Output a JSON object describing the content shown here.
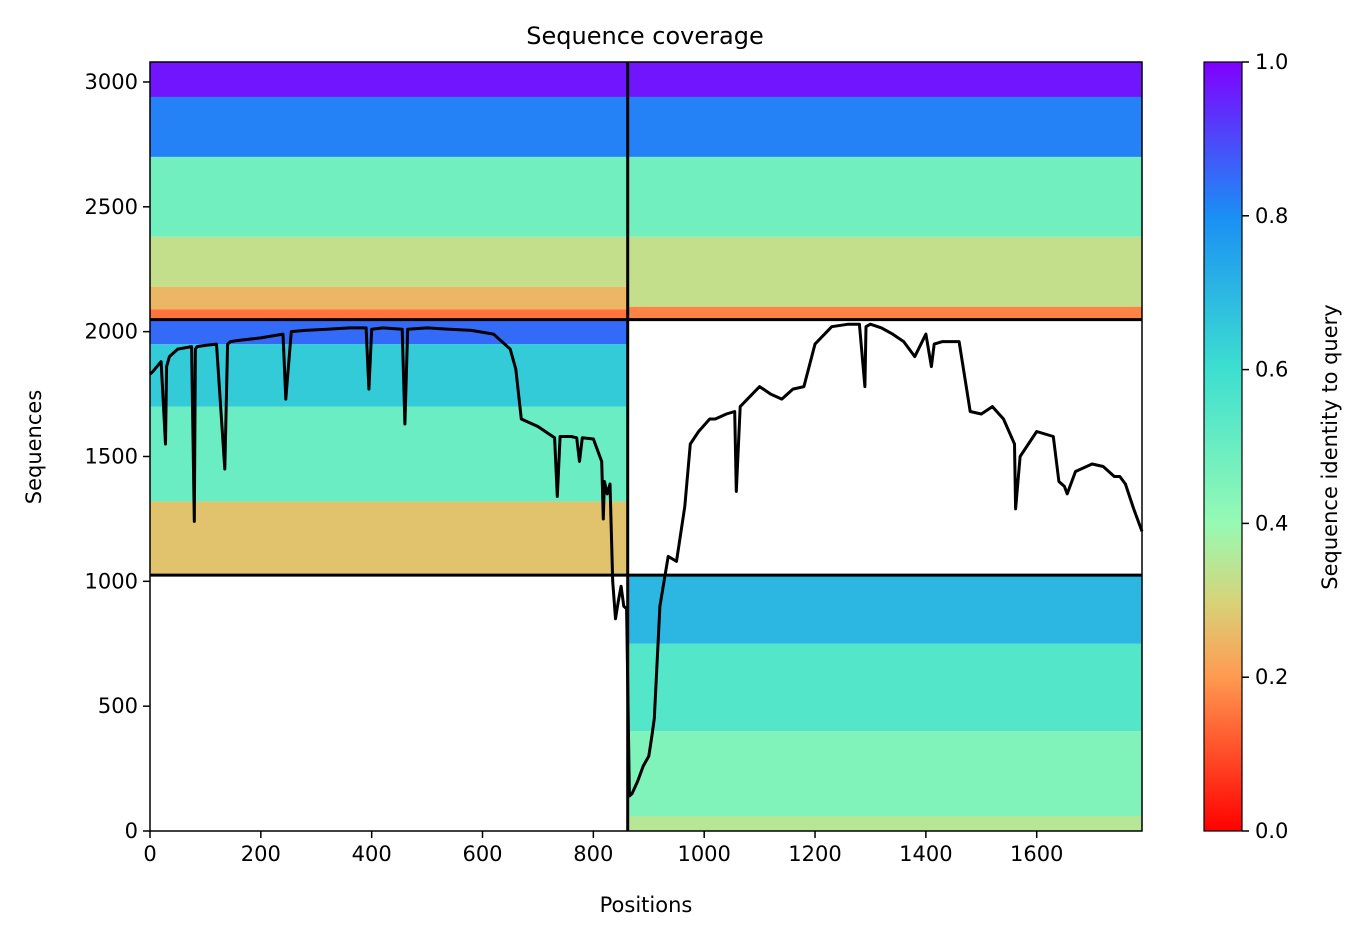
{
  "chart_data": {
    "type": "heatmap",
    "title": "Sequence coverage",
    "xlabel": "Positions",
    "ylabel": "Sequences",
    "xlim": [
      0,
      1790
    ],
    "ylim": [
      0,
      3080
    ],
    "xticks": [
      0,
      200,
      400,
      600,
      800,
      1000,
      1200,
      1400,
      1600
    ],
    "yticks": [
      0,
      500,
      1000,
      1500,
      2000,
      2500,
      3000
    ],
    "grid": false,
    "colorbar": {
      "label": "Sequence identity to query",
      "range": [
        0.0,
        1.0
      ],
      "ticks": [
        "0.0",
        "0.2",
        "0.4",
        "0.6",
        "0.8",
        "1.0"
      ],
      "colormap": "rainbow_r",
      "colors": {
        "0.0": "#ff0000",
        "0.2": "#ff9a50",
        "0.3": "#d6d47a",
        "0.4": "#96fab4",
        "0.6": "#3ddfd0",
        "0.8": "#1a8ff5",
        "1.0": "#7f00ff"
      }
    },
    "boundaries": {
      "vertical_x": 862,
      "horizontal_y": [
        1025,
        2048
      ]
    },
    "blocks": [
      {
        "name": "upper-left",
        "x": [
          0,
          862
        ],
        "y": [
          2048,
          3080
        ],
        "identity_bands": [
          {
            "y": [
              2048,
              2090
            ],
            "identity": 0.15
          },
          {
            "y": [
              2090,
              2180
            ],
            "identity": 0.25
          },
          {
            "y": [
              2180,
              2380
            ],
            "identity": 0.33
          },
          {
            "y": [
              2380,
              2700
            ],
            "identity": 0.48
          },
          {
            "y": [
              2700,
              2940
            ],
            "identity": 0.82
          },
          {
            "y": [
              2940,
              3080
            ],
            "identity": 0.97
          }
        ]
      },
      {
        "name": "upper-right",
        "x": [
          862,
          1790
        ],
        "y": [
          2048,
          3080
        ],
        "identity_bands": [
          {
            "y": [
              2048,
              2100
            ],
            "identity": 0.17
          },
          {
            "y": [
              2100,
              2380
            ],
            "identity": 0.33
          },
          {
            "y": [
              2380,
              2700
            ],
            "identity": 0.48
          },
          {
            "y": [
              2700,
              2940
            ],
            "identity": 0.82
          },
          {
            "y": [
              2940,
              3080
            ],
            "identity": 0.97
          }
        ]
      },
      {
        "name": "middle-left",
        "x": [
          0,
          862
        ],
        "y": [
          1025,
          2048
        ],
        "identity_bands": [
          {
            "y": [
              1025,
              1320
            ],
            "identity": 0.27
          },
          {
            "y": [
              1320,
              1700
            ],
            "identity": 0.5
          },
          {
            "y": [
              1700,
              1950
            ],
            "identity": 0.65
          },
          {
            "y": [
              1950,
              2048
            ],
            "identity": 0.85
          }
        ]
      },
      {
        "name": "lower-right",
        "x": [
          862,
          1790
        ],
        "y": [
          0,
          1025
        ],
        "identity_bands": [
          {
            "y": [
              0,
              60
            ],
            "identity": 0.35
          },
          {
            "y": [
              60,
              400
            ],
            "identity": 0.45
          },
          {
            "y": [
              400,
              750
            ],
            "identity": 0.55
          },
          {
            "y": [
              750,
              1025
            ],
            "identity": 0.7
          }
        ]
      }
    ],
    "series": [
      {
        "type": "line",
        "color": "#000000",
        "x": [
          0,
          5,
          20,
          28,
          30,
          35,
          50,
          75,
          80,
          82,
          85,
          100,
          120,
          135,
          140,
          145,
          160,
          200,
          240,
          245,
          248,
          255,
          280,
          320,
          360,
          390,
          395,
          400,
          420,
          455,
          460,
          465,
          500,
          540,
          580,
          620,
          650,
          660,
          670,
          680,
          700,
          720,
          730,
          735,
          740,
          760,
          770,
          775,
          780,
          800,
          815,
          818,
          820,
          825,
          830,
          835,
          840,
          845,
          850,
          855,
          860,
          865,
          870,
          880,
          890,
          900,
          905,
          910,
          920,
          935,
          950,
          965,
          975,
          990,
          1010,
          1020,
          1040,
          1055,
          1058,
          1065,
          1100,
          1120,
          1140,
          1160,
          1180,
          1200,
          1230,
          1260,
          1280,
          1290,
          1292,
          1300,
          1320,
          1340,
          1360,
          1380,
          1400,
          1410,
          1415,
          1430,
          1460,
          1480,
          1500,
          1520,
          1540,
          1560,
          1562,
          1570,
          1600,
          1630,
          1640,
          1650,
          1655,
          1670,
          1700,
          1720,
          1740,
          1750,
          1760,
          1775,
          1790
        ],
        "y": [
          1830,
          1840,
          1880,
          1550,
          1860,
          1900,
          1930,
          1940,
          1240,
          1930,
          1940,
          1945,
          1950,
          1450,
          1950,
          1960,
          1965,
          1975,
          1990,
          1730,
          1810,
          2000,
          2005,
          2010,
          2015,
          2015,
          1770,
          2010,
          2015,
          2010,
          1630,
          2010,
          2015,
          2010,
          2005,
          1990,
          1930,
          1850,
          1650,
          1640,
          1620,
          1590,
          1575,
          1340,
          1580,
          1580,
          1575,
          1480,
          1575,
          1570,
          1480,
          1250,
          1400,
          1350,
          1390,
          1000,
          850,
          920,
          980,
          900,
          890,
          140,
          150,
          200,
          260,
          300,
          370,
          450,
          900,
          1100,
          1080,
          1300,
          1550,
          1600,
          1650,
          1650,
          1670,
          1680,
          1360,
          1700,
          1780,
          1750,
          1730,
          1770,
          1780,
          1950,
          2020,
          2030,
          2030,
          1780,
          2020,
          2030,
          2015,
          1990,
          1960,
          1900,
          1990,
          1860,
          1950,
          1960,
          1960,
          1680,
          1670,
          1700,
          1650,
          1550,
          1290,
          1500,
          1600,
          1580,
          1400,
          1380,
          1350,
          1440,
          1470,
          1460,
          1420,
          1420,
          1390,
          1290,
          1200
        ]
      }
    ]
  }
}
